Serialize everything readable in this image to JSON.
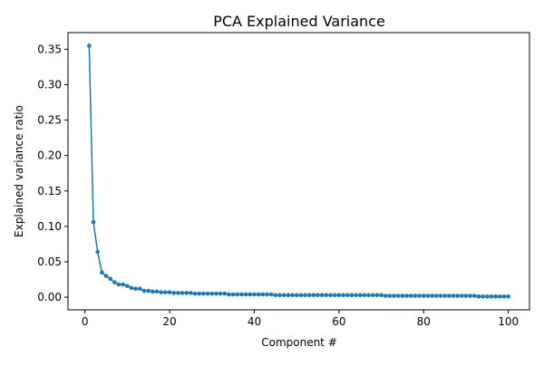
{
  "chart_data": {
    "type": "line",
    "title": "PCA Explained Variance",
    "xlabel": "Component #",
    "ylabel": "Explained variance ratio",
    "xlim": [
      -4.0,
      105.0
    ],
    "ylim": [
      -0.0178,
      0.3735
    ],
    "xticks": [
      0,
      20,
      40,
      60,
      80,
      100
    ],
    "xtick_labels": [
      "0",
      "20",
      "40",
      "60",
      "80",
      "100"
    ],
    "yticks": [
      0.0,
      0.05,
      0.1,
      0.15,
      0.2,
      0.25,
      0.3,
      0.35
    ],
    "ytick_labels": [
      "0.00",
      "0.05",
      "0.10",
      "0.15",
      "0.20",
      "0.25",
      "0.30",
      "0.35"
    ],
    "grid": false,
    "legend": "none",
    "series": [
      {
        "color": "#1f77b4",
        "marker": "circle",
        "x": [
          1,
          2,
          3,
          4,
          5,
          6,
          7,
          8,
          9,
          10,
          11,
          12,
          13,
          14,
          15,
          16,
          17,
          18,
          19,
          20,
          21,
          22,
          23,
          24,
          25,
          26,
          27,
          28,
          29,
          30,
          31,
          32,
          33,
          34,
          35,
          36,
          37,
          38,
          39,
          40,
          41,
          42,
          43,
          44,
          45,
          46,
          47,
          48,
          49,
          50,
          51,
          52,
          53,
          54,
          55,
          56,
          57,
          58,
          59,
          60,
          61,
          62,
          63,
          64,
          65,
          66,
          67,
          68,
          69,
          70,
          71,
          72,
          73,
          74,
          75,
          76,
          77,
          78,
          79,
          80,
          81,
          82,
          83,
          84,
          85,
          86,
          87,
          88,
          89,
          90,
          91,
          92,
          93,
          94,
          95,
          96,
          97,
          98,
          99,
          100
        ],
        "values": [
          0.355,
          0.106,
          0.064,
          0.035,
          0.03,
          0.026,
          0.021,
          0.018,
          0.018,
          0.016,
          0.013,
          0.012,
          0.012,
          0.009,
          0.009,
          0.008,
          0.008,
          0.007,
          0.007,
          0.007,
          0.006,
          0.006,
          0.006,
          0.006,
          0.006,
          0.005,
          0.005,
          0.005,
          0.005,
          0.005,
          0.005,
          0.005,
          0.005,
          0.004,
          0.004,
          0.004,
          0.004,
          0.004,
          0.004,
          0.004,
          0.004,
          0.004,
          0.004,
          0.004,
          0.003,
          0.003,
          0.003,
          0.003,
          0.003,
          0.003,
          0.003,
          0.003,
          0.003,
          0.003,
          0.003,
          0.003,
          0.003,
          0.003,
          0.003,
          0.003,
          0.003,
          0.003,
          0.003,
          0.003,
          0.003,
          0.003,
          0.003,
          0.003,
          0.003,
          0.003,
          0.002,
          0.002,
          0.002,
          0.002,
          0.002,
          0.002,
          0.002,
          0.002,
          0.002,
          0.002,
          0.002,
          0.002,
          0.002,
          0.002,
          0.002,
          0.002,
          0.002,
          0.002,
          0.002,
          0.002,
          0.002,
          0.002,
          0.001,
          0.001,
          0.001,
          0.001,
          0.001,
          0.001,
          0.001,
          0.001
        ]
      }
    ]
  }
}
